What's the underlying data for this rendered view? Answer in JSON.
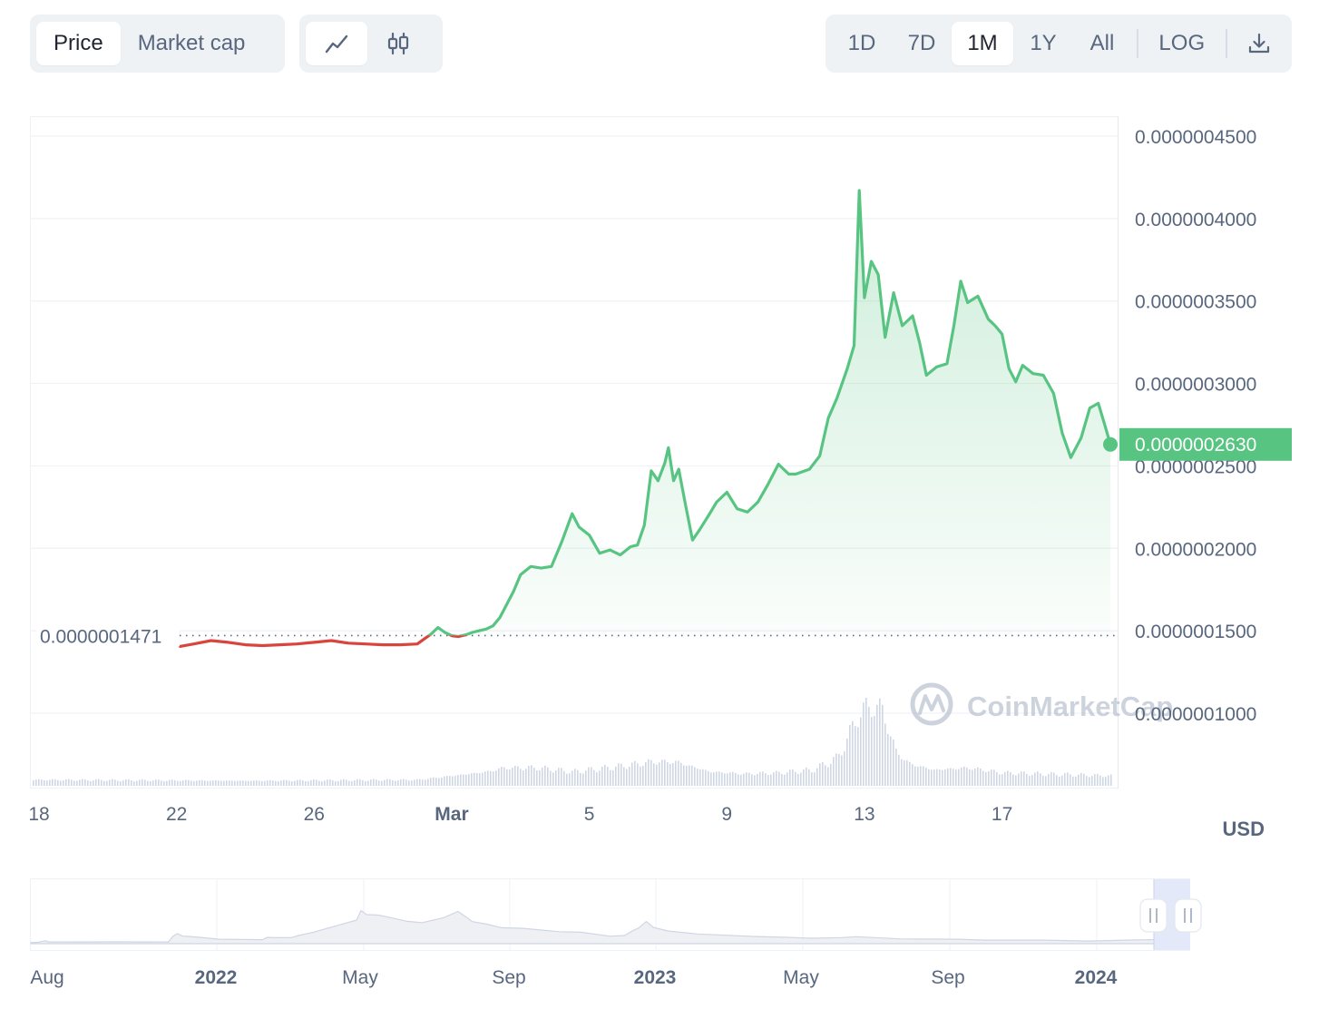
{
  "toolbar": {
    "type_tabs": [
      {
        "label": "Price",
        "active": true
      },
      {
        "label": "Market cap",
        "active": false
      }
    ],
    "chart_type_icons": [
      "line-chart-icon",
      "candlestick-icon"
    ],
    "range_tabs": [
      {
        "label": "1D",
        "active": false
      },
      {
        "label": "7D",
        "active": false
      },
      {
        "label": "1M",
        "active": true
      },
      {
        "label": "1Y",
        "active": false
      },
      {
        "label": "All",
        "active": false
      }
    ],
    "log_label": "LOG",
    "download_icon": "download-icon"
  },
  "watermark": "CoinMarketCap",
  "currency_label": "USD",
  "colors": {
    "up": "#58c482",
    "down": "#d9443c",
    "accent_badge": "#58c482"
  },
  "chart_data": {
    "type": "line",
    "x_ticks": [
      {
        "label": "18",
        "day": 0,
        "bold": false
      },
      {
        "label": "22",
        "day": 4,
        "bold": false
      },
      {
        "label": "26",
        "day": 8,
        "bold": false
      },
      {
        "label": "Mar",
        "day": 12,
        "bold": true
      },
      {
        "label": "5",
        "day": 16,
        "bold": false
      },
      {
        "label": "9",
        "day": 20,
        "bold": false
      },
      {
        "label": "13",
        "day": 24,
        "bold": false
      },
      {
        "label": "17",
        "day": 28,
        "bold": false
      }
    ],
    "y_ticks": [
      "0.0000004500",
      "0.0000004000",
      "0.0000003500",
      "0.0000003000",
      "0.0000002500",
      "0.0000002000",
      "0.0000001500",
      "0.0000001000"
    ],
    "ylim": [
      5.6e-08,
      4.62e-07
    ],
    "baseline_value": 1.471e-07,
    "baseline_label": "0.0000001471",
    "current_value": 2.63e-07,
    "current_label": "0.0000002630",
    "series": [
      {
        "values": [
          [
            4.1,
            1.405e-07
          ],
          [
            4.5,
            1.42e-07
          ],
          [
            5.0,
            1.44e-07
          ],
          [
            5.5,
            1.43e-07
          ],
          [
            6.0,
            1.415e-07
          ],
          [
            6.5,
            1.41e-07
          ],
          [
            7.0,
            1.415e-07
          ],
          [
            7.5,
            1.42e-07
          ],
          [
            8.0,
            1.43e-07
          ],
          [
            8.5,
            1.44e-07
          ],
          [
            9.0,
            1.425e-07
          ],
          [
            9.5,
            1.42e-07
          ],
          [
            10.0,
            1.415e-07
          ],
          [
            10.5,
            1.415e-07
          ],
          [
            11.0,
            1.42e-07
          ],
          [
            11.2,
            1.45e-07
          ],
          [
            11.4,
            1.48e-07
          ],
          [
            11.6,
            1.52e-07
          ],
          [
            11.8,
            1.49e-07
          ],
          [
            12.0,
            1.47e-07
          ],
          [
            12.2,
            1.465e-07
          ],
          [
            12.4,
            1.475e-07
          ],
          [
            12.6,
            1.49e-07
          ],
          [
            12.8,
            1.5e-07
          ],
          [
            13.0,
            1.51e-07
          ],
          [
            13.2,
            1.53e-07
          ],
          [
            13.4,
            1.58e-07
          ],
          [
            13.6,
            1.66e-07
          ],
          [
            13.8,
            1.74e-07
          ],
          [
            14.0,
            1.84e-07
          ],
          [
            14.3,
            1.89e-07
          ],
          [
            14.6,
            1.88e-07
          ],
          [
            14.9,
            1.89e-07
          ],
          [
            15.2,
            2.04e-07
          ],
          [
            15.5,
            2.21e-07
          ],
          [
            15.7,
            2.13e-07
          ],
          [
            16.0,
            2.08e-07
          ],
          [
            16.3,
            1.97e-07
          ],
          [
            16.6,
            1.99e-07
          ],
          [
            16.9,
            1.96e-07
          ],
          [
            17.2,
            2.01e-07
          ],
          [
            17.4,
            2.02e-07
          ],
          [
            17.6,
            2.14e-07
          ],
          [
            17.8,
            2.47e-07
          ],
          [
            18.0,
            2.41e-07
          ],
          [
            18.2,
            2.52e-07
          ],
          [
            18.3,
            2.61e-07
          ],
          [
            18.45,
            2.41e-07
          ],
          [
            18.6,
            2.48e-07
          ],
          [
            18.8,
            2.26e-07
          ],
          [
            19.0,
            2.05e-07
          ],
          [
            19.2,
            2.11e-07
          ],
          [
            19.5,
            2.21e-07
          ],
          [
            19.7,
            2.28e-07
          ],
          [
            20.0,
            2.34e-07
          ],
          [
            20.3,
            2.24e-07
          ],
          [
            20.6,
            2.22e-07
          ],
          [
            20.9,
            2.28e-07
          ],
          [
            21.2,
            2.39e-07
          ],
          [
            21.5,
            2.51e-07
          ],
          [
            21.8,
            2.45e-07
          ],
          [
            22.0,
            2.45e-07
          ],
          [
            22.4,
            2.48e-07
          ],
          [
            22.7,
            2.56e-07
          ],
          [
            22.95,
            2.79e-07
          ],
          [
            23.2,
            2.91e-07
          ],
          [
            23.5,
            3.09e-07
          ],
          [
            23.7,
            3.23e-07
          ],
          [
            23.85,
            4.17e-07
          ],
          [
            24.0,
            3.52e-07
          ],
          [
            24.2,
            3.74e-07
          ],
          [
            24.4,
            3.66e-07
          ],
          [
            24.6,
            3.28e-07
          ],
          [
            24.85,
            3.55e-07
          ],
          [
            25.1,
            3.35e-07
          ],
          [
            25.4,
            3.41e-07
          ],
          [
            25.6,
            3.25e-07
          ],
          [
            25.8,
            3.05e-07
          ],
          [
            26.1,
            3.1e-07
          ],
          [
            26.4,
            3.12e-07
          ],
          [
            26.6,
            3.35e-07
          ],
          [
            26.8,
            3.62e-07
          ],
          [
            27.0,
            3.49e-07
          ],
          [
            27.3,
            3.53e-07
          ],
          [
            27.6,
            3.39e-07
          ],
          [
            27.8,
            3.35e-07
          ],
          [
            28.0,
            3.3e-07
          ],
          [
            28.2,
            3.09e-07
          ],
          [
            28.4,
            3.01e-07
          ],
          [
            28.6,
            3.11e-07
          ],
          [
            28.9,
            3.06e-07
          ],
          [
            29.2,
            3.05e-07
          ],
          [
            29.5,
            2.94e-07
          ],
          [
            29.75,
            2.7e-07
          ],
          [
            30.0,
            2.55e-07
          ],
          [
            30.3,
            2.67e-07
          ],
          [
            30.55,
            2.85e-07
          ],
          [
            30.8,
            2.88e-07
          ],
          [
            31.0,
            2.74e-07
          ],
          [
            31.15,
            2.63e-07
          ]
        ]
      }
    ],
    "volume_profile": [
      [
        0,
        6
      ],
      [
        6,
        5
      ],
      [
        11,
        6
      ],
      [
        12,
        10
      ],
      [
        13,
        14
      ],
      [
        13.5,
        18
      ],
      [
        14.5,
        18
      ],
      [
        15.5,
        14
      ],
      [
        17,
        20
      ],
      [
        17.8,
        24
      ],
      [
        18.5,
        24
      ],
      [
        19.5,
        14
      ],
      [
        20.5,
        12
      ],
      [
        21.5,
        13
      ],
      [
        22.5,
        16
      ],
      [
        23.2,
        28
      ],
      [
        23.6,
        55
      ],
      [
        23.8,
        72
      ],
      [
        24.2,
        80
      ],
      [
        24.5,
        76
      ],
      [
        24.7,
        55
      ],
      [
        24.9,
        34
      ],
      [
        25.3,
        22
      ],
      [
        26,
        16
      ],
      [
        27,
        18
      ],
      [
        28,
        13
      ],
      [
        29,
        12
      ],
      [
        31.15,
        10
      ]
    ],
    "volume_max": 100,
    "xlim": [
      0,
      31.15
    ],
    "grid": true
  },
  "navigator": {
    "labels": [
      {
        "label": "Aug",
        "bold": false
      },
      {
        "label": "2022",
        "bold": true
      },
      {
        "label": "May",
        "bold": false
      },
      {
        "label": "Sep",
        "bold": false
      },
      {
        "label": "2023",
        "bold": true
      },
      {
        "label": "May",
        "bold": false
      },
      {
        "label": "Sep",
        "bold": false
      },
      {
        "label": "2024",
        "bold": true
      }
    ],
    "profile": [
      [
        0,
        2
      ],
      [
        0.5,
        2
      ],
      [
        1,
        6
      ],
      [
        1.2,
        3
      ],
      [
        6,
        3
      ],
      [
        9.5,
        3
      ],
      [
        9.8,
        12
      ],
      [
        10.1,
        18
      ],
      [
        10.5,
        14
      ],
      [
        11,
        12
      ],
      [
        12,
        10
      ],
      [
        13,
        8
      ],
      [
        16,
        7
      ],
      [
        16.3,
        12
      ],
      [
        17,
        10
      ],
      [
        18,
        10
      ],
      [
        18.5,
        15
      ],
      [
        19.5,
        20
      ],
      [
        22.5,
        42
      ],
      [
        22.8,
        58
      ],
      [
        23.2,
        52
      ],
      [
        24,
        50
      ],
      [
        25,
        45
      ],
      [
        26,
        40
      ],
      [
        27,
        38
      ],
      [
        28.5,
        46
      ],
      [
        29.5,
        58
      ],
      [
        30.5,
        40
      ],
      [
        31.5,
        35
      ],
      [
        32.5,
        28
      ],
      [
        34,
        28
      ],
      [
        35,
        25
      ],
      [
        36.5,
        22
      ],
      [
        38,
        20
      ],
      [
        40,
        14
      ],
      [
        41,
        15
      ],
      [
        41.5,
        22
      ],
      [
        42,
        28
      ],
      [
        42.5,
        40
      ],
      [
        43,
        28
      ],
      [
        44,
        22
      ],
      [
        46,
        18
      ],
      [
        48,
        15
      ],
      [
        50,
        12
      ],
      [
        52,
        12
      ],
      [
        54,
        10
      ],
      [
        56,
        10
      ],
      [
        57,
        12
      ],
      [
        60,
        9
      ],
      [
        64,
        8
      ],
      [
        66,
        7
      ],
      [
        70,
        6
      ],
      [
        73,
        5
      ],
      [
        76,
        6
      ],
      [
        78,
        8
      ],
      [
        79.5,
        10
      ],
      [
        80,
        9
      ]
    ]
  }
}
